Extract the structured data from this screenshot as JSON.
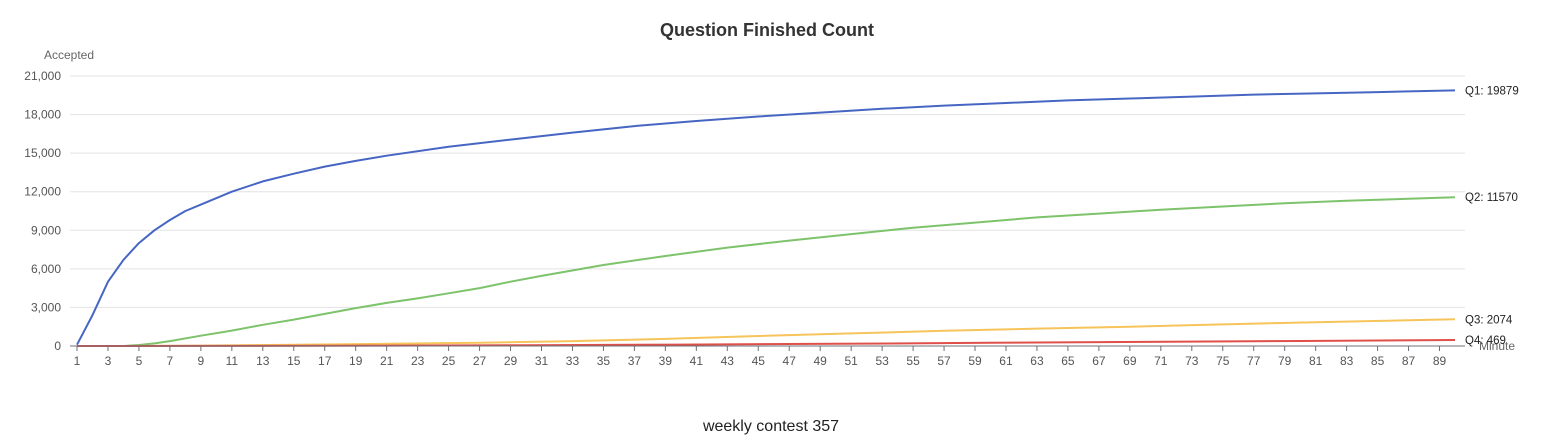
{
  "chart_data": {
    "type": "line",
    "title": "Question Finished Count",
    "ylabel": "Accepted",
    "xlabel": "Minute",
    "caption": "weekly contest 357",
    "ylim": [
      0,
      21000
    ],
    "yticks": [
      0,
      3000,
      6000,
      9000,
      12000,
      15000,
      18000,
      21000
    ],
    "y_tick_labels": [
      "0",
      "3,000",
      "6,000",
      "9,000",
      "12,000",
      "15,000",
      "18,000",
      "21,000"
    ],
    "x_tick_labels": [
      "1",
      "3",
      "5",
      "7",
      "9",
      "11",
      "13",
      "15",
      "17",
      "19",
      "21",
      "23",
      "25",
      "27",
      "29",
      "31",
      "33",
      "35",
      "37",
      "39",
      "41",
      "43",
      "45",
      "47",
      "49",
      "51",
      "53",
      "55",
      "57",
      "59",
      "61",
      "63",
      "65",
      "67",
      "69",
      "71",
      "73",
      "75",
      "77",
      "79",
      "81",
      "83",
      "85",
      "87",
      "89"
    ],
    "grid": true,
    "series": [
      {
        "name": "Q1",
        "end_label": "Q1: 19879",
        "color": "#4766c3",
        "points": [
          [
            1,
            100
          ],
          [
            2,
            2400
          ],
          [
            3,
            5000
          ],
          [
            4,
            6700
          ],
          [
            5,
            8000
          ],
          [
            6,
            9000
          ],
          [
            7,
            9800
          ],
          [
            8,
            10500
          ],
          [
            9,
            11000
          ],
          [
            11,
            12000
          ],
          [
            13,
            12800
          ],
          [
            15,
            13400
          ],
          [
            17,
            13950
          ],
          [
            19,
            14400
          ],
          [
            21,
            14800
          ],
          [
            25,
            15500
          ],
          [
            29,
            16050
          ],
          [
            33,
            16600
          ],
          [
            37,
            17100
          ],
          [
            41,
            17500
          ],
          [
            45,
            17850
          ],
          [
            49,
            18150
          ],
          [
            53,
            18450
          ],
          [
            57,
            18700
          ],
          [
            61,
            18900
          ],
          [
            65,
            19100
          ],
          [
            69,
            19250
          ],
          [
            73,
            19400
          ],
          [
            77,
            19550
          ],
          [
            81,
            19650
          ],
          [
            85,
            19750
          ],
          [
            90,
            19879
          ]
        ]
      },
      {
        "name": "Q2",
        "end_label": "Q2: 11570",
        "color": "#7dc36b",
        "points": [
          [
            1,
            0
          ],
          [
            4,
            0
          ],
          [
            5,
            80
          ],
          [
            6,
            200
          ],
          [
            7,
            380
          ],
          [
            9,
            800
          ],
          [
            11,
            1200
          ],
          [
            13,
            1650
          ],
          [
            15,
            2050
          ],
          [
            17,
            2500
          ],
          [
            19,
            2950
          ],
          [
            21,
            3350
          ],
          [
            23,
            3700
          ],
          [
            25,
            4100
          ],
          [
            27,
            4500
          ],
          [
            29,
            5000
          ],
          [
            31,
            5450
          ],
          [
            35,
            6300
          ],
          [
            39,
            7000
          ],
          [
            43,
            7650
          ],
          [
            47,
            8200
          ],
          [
            51,
            8700
          ],
          [
            55,
            9200
          ],
          [
            59,
            9600
          ],
          [
            63,
            10000
          ],
          [
            67,
            10300
          ],
          [
            71,
            10600
          ],
          [
            75,
            10850
          ],
          [
            79,
            11100
          ],
          [
            83,
            11300
          ],
          [
            87,
            11450
          ],
          [
            90,
            11570
          ]
        ]
      },
      {
        "name": "Q3",
        "end_label": "Q3: 2074",
        "color": "#f6c45a",
        "points": [
          [
            1,
            0
          ],
          [
            5,
            0
          ],
          [
            9,
            30
          ],
          [
            15,
            100
          ],
          [
            21,
            170
          ],
          [
            27,
            250
          ],
          [
            33,
            380
          ],
          [
            39,
            550
          ],
          [
            45,
            780
          ],
          [
            51,
            980
          ],
          [
            57,
            1180
          ],
          [
            63,
            1350
          ],
          [
            69,
            1500
          ],
          [
            75,
            1680
          ],
          [
            81,
            1850
          ],
          [
            87,
            2000
          ],
          [
            90,
            2074
          ]
        ]
      },
      {
        "name": "Q4",
        "end_label": "Q4: 469",
        "color": "#e0504a",
        "points": [
          [
            1,
            0
          ],
          [
            10,
            10
          ],
          [
            20,
            30
          ],
          [
            30,
            60
          ],
          [
            40,
            110
          ],
          [
            50,
            170
          ],
          [
            60,
            250
          ],
          [
            70,
            320
          ],
          [
            80,
            390
          ],
          [
            90,
            469
          ]
        ]
      }
    ]
  }
}
